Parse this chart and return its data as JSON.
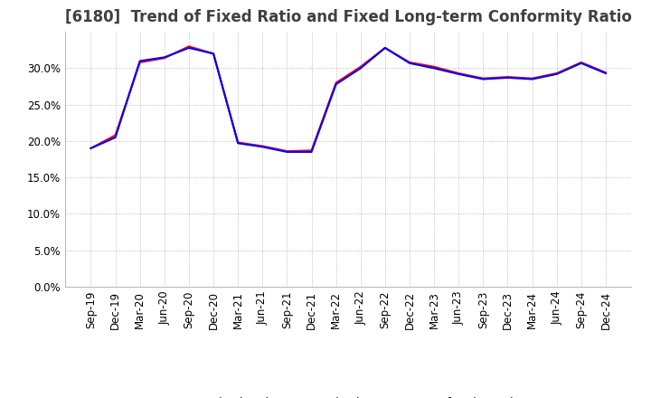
{
  "title": "[6180]  Trend of Fixed Ratio and Fixed Long-term Conformity Ratio",
  "x_labels": [
    "Sep-19",
    "Dec-19",
    "Mar-20",
    "Jun-20",
    "Sep-20",
    "Dec-20",
    "Mar-21",
    "Jun-21",
    "Sep-21",
    "Dec-21",
    "Mar-22",
    "Jun-22",
    "Sep-22",
    "Dec-22",
    "Mar-23",
    "Jun-23",
    "Sep-23",
    "Dec-23",
    "Mar-24",
    "Jun-24",
    "Sep-24",
    "Dec-24"
  ],
  "fixed_ratio": [
    0.19,
    0.205,
    0.31,
    0.315,
    0.328,
    0.32,
    0.197,
    0.192,
    0.185,
    0.185,
    0.278,
    0.3,
    0.328,
    0.307,
    0.3,
    0.292,
    0.285,
    0.287,
    0.285,
    0.292,
    0.307,
    0.293
  ],
  "fixed_lt_ratio": [
    0.19,
    0.208,
    0.308,
    0.314,
    0.33,
    0.32,
    0.198,
    0.193,
    0.186,
    0.187,
    0.28,
    0.302,
    0.328,
    0.308,
    0.302,
    0.293,
    0.286,
    0.288,
    0.286,
    0.293,
    0.308,
    0.294
  ],
  "fixed_ratio_color": "#0000ff",
  "fixed_lt_ratio_color": "#ff0000",
  "ylim": [
    0.0,
    0.35
  ],
  "yticks": [
    0.0,
    0.05,
    0.1,
    0.15,
    0.2,
    0.25,
    0.3
  ],
  "background_color": "#ffffff",
  "grid_color": "#aaaaaa",
  "title_fontsize": 12,
  "label_fontsize": 8.5,
  "legend_fontsize": 9
}
